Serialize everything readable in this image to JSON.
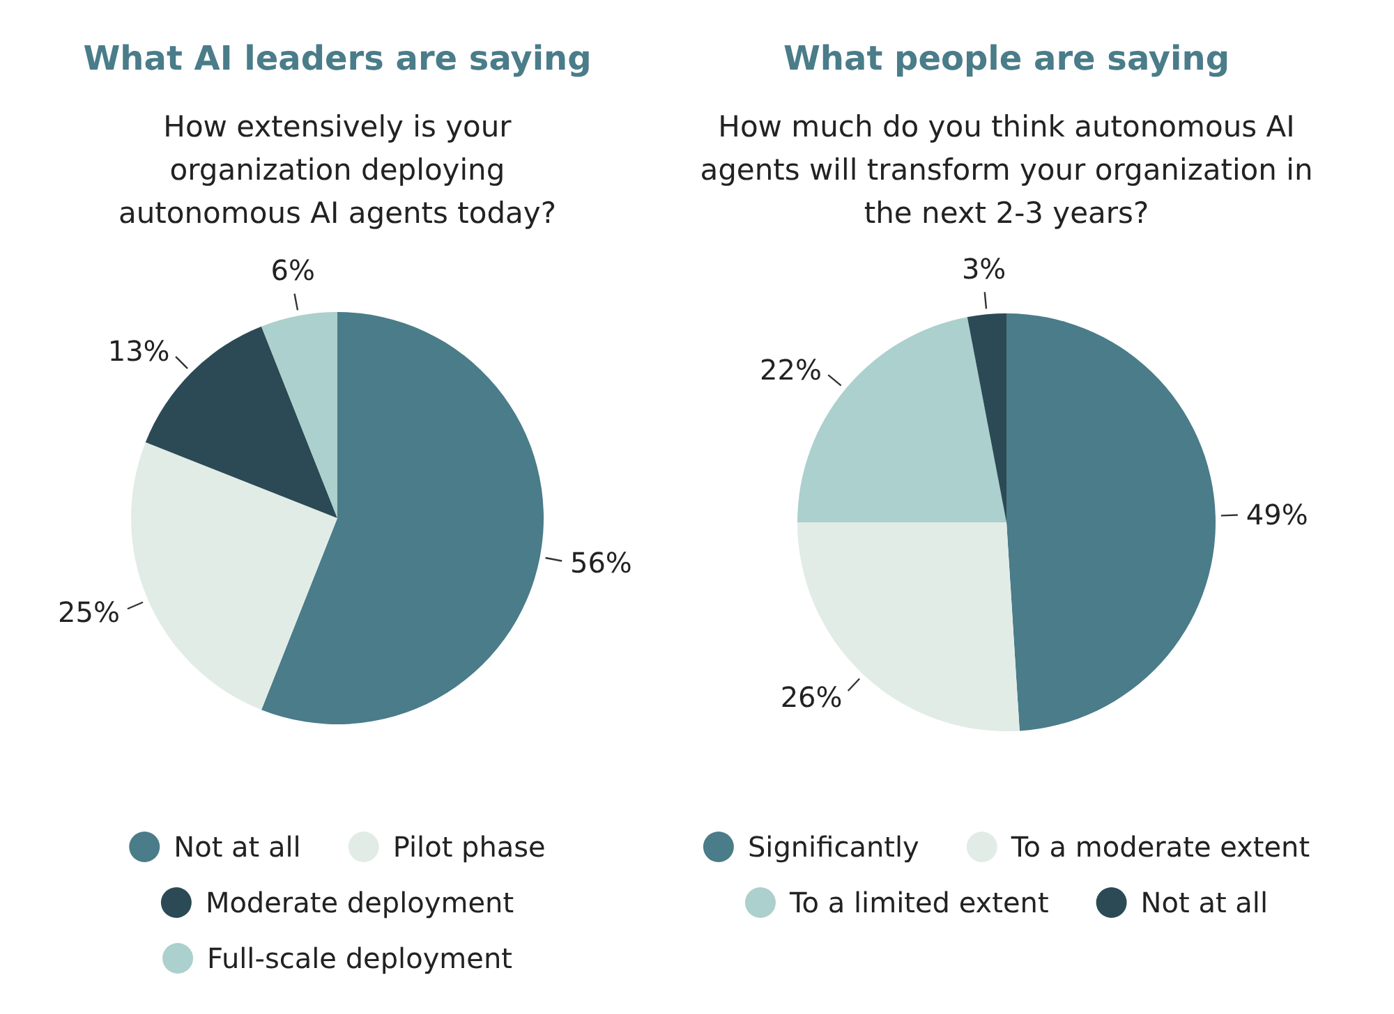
{
  "chart_data": [
    {
      "type": "pie",
      "title": "What AI leaders are saying",
      "subtitle": "How extensively is your organization deploying autonomous AI agents today?",
      "categories": [
        "Not at all",
        "Pilot phase",
        "Moderate deployment",
        "Full-scale deployment"
      ],
      "values": [
        56,
        25,
        13,
        6
      ],
      "colors": [
        "#4a7c89",
        "#e2ece7",
        "#2b4a55",
        "#abd0cd"
      ],
      "value_labels": [
        "56%",
        "25%",
        "13%",
        "6%"
      ],
      "legend": "bottom"
    },
    {
      "type": "pie",
      "title": "What people are saying",
      "subtitle": "How much do you think autonomous AI agents will transform your organization in the next 2-3 years?",
      "categories": [
        "Significantly",
        "To a moderate extent",
        "To a limited extent",
        "Not at all"
      ],
      "values": [
        49,
        26,
        22,
        3
      ],
      "colors": [
        "#4a7c89",
        "#e2ece7",
        "#abd0cd",
        "#2b4a55"
      ],
      "value_labels": [
        "49%",
        "26%",
        "22%",
        "3%"
      ],
      "legend": "bottom"
    }
  ]
}
